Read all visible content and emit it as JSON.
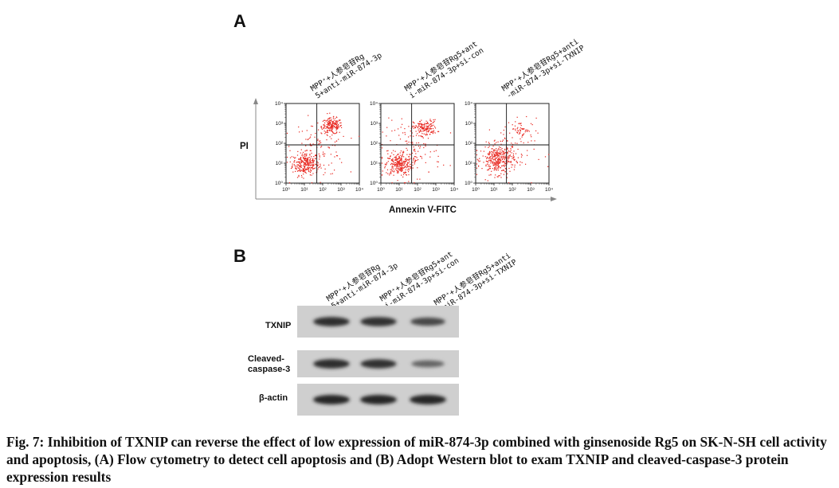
{
  "panel_a": {
    "letter": "A",
    "y_axis_label": "PI",
    "x_axis_label": "Annexin V-FITC",
    "groups": [
      {
        "line1": "MPP⁺+人参皂苷Rg",
        "line2": "5+anti-miR-874-3p"
      },
      {
        "line1": "MPP⁺+人参皂苷Rg5+ant",
        "line2": "i-miR-874-3p+si-con"
      },
      {
        "line1": "MPP⁺+人参皂苷Rg5+anti",
        "line2": "-miR-874-3p+si-TXNIP"
      }
    ],
    "tick_labels": [
      "10⁰",
      "10¹",
      "10²",
      "10³",
      "10⁴"
    ],
    "dot_color": "#e8261f"
  },
  "panel_b": {
    "letter": "B",
    "groups": [
      {
        "line1": "MPP⁺+人参皂苷Rg",
        "line2": "5+anti-miR-874-3p"
      },
      {
        "line1": "MPP⁺+人参皂苷Rg5+ant",
        "line2": "i-miR-874-3p+si-con"
      },
      {
        "line1": "MPP⁺+人参皂苷Rg5+anti",
        "line2": "-miR-874-3p+si-TXNIP"
      }
    ],
    "blots": [
      {
        "label": "TXNIP",
        "intensities": [
          0.95,
          0.92,
          0.72
        ]
      },
      {
        "label": "Cleaved-\ncaspase-3",
        "intensities": [
          0.95,
          0.9,
          0.45
        ]
      },
      {
        "label": "β-actin",
        "intensities": [
          1.0,
          1.0,
          1.0
        ]
      }
    ]
  },
  "caption": "Fig. 7: Inhibition of TXNIP can reverse the effect of low expression of miR-874-3p combined with ginsenoside Rg5 on SK-N-SH cell activity and apoptosis, (A) Flow cytometry to detect cell apoptosis and (B) Adopt Western blot to exam TXNIP and cleaved-caspase-3 protein expression results"
}
